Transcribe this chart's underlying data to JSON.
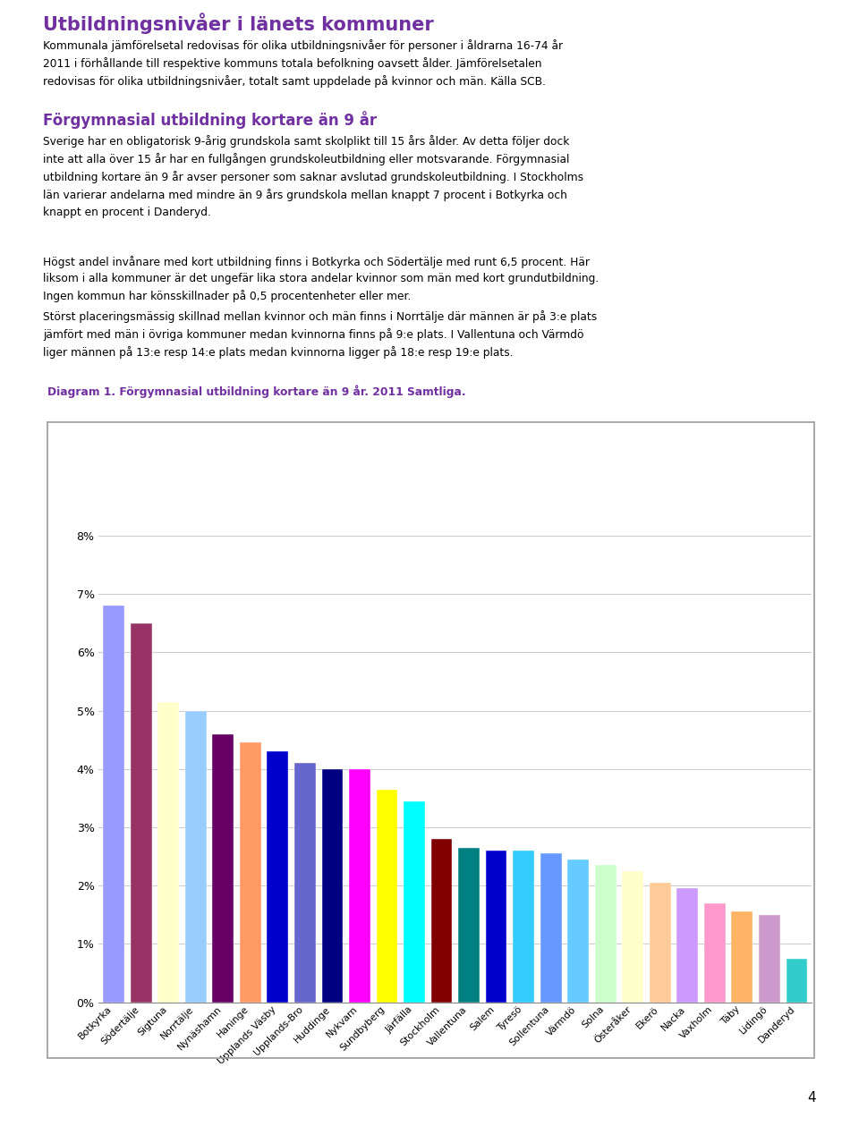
{
  "title_main": "Utbildningsnivåer i länets kommuner",
  "title_main_color": "#7030A0",
  "subtitle_h2": "Förgymnasial utbildning kortare än 9 år",
  "subtitle_h2_color": "#7030A0",
  "diagram_label": "Diagram 1. Förgymnasial utbildning kortare än 9 år. 2011 Samtliga.",
  "diagram_label_color": "#7030A0",
  "para1": "Kommunala jämförelsetal redovisas för olika utbildningsnivåer för personer i åldrarna 16-74 år\n2011 i förhållande till respektive kommuns totala befolkning oavsett ålder. Jämförelsetalen\nredovisas för olika utbildningsnivåer, totalt samt uppdelade på kvinnor och män. Källa SCB.",
  "para2": "Sverige har en obligatorisk 9-årig grundskola samt skolplikt till 15 års ålder. Av detta följer dock\ninte att alla över 15 år har en fullgången grundskoleutbildning eller motsvarande. Förgymnasial\nutbildning kortare än 9 år avser personer som saknar avslutad grundskoleutbildning. I Stockholms\nlän varierar andelarna med mindre än 9 års grundskola mellan knappt 7 procent i Botkyrka och\nknappt en procent i Danderyd.",
  "para3": "Högst andel invånare med kort utbildning finns i Botkyrka och Södertälje med runt 6,5 procent. Här\nliksom i alla kommuner är det ungefär lika stora andelar kvinnor som män med kort grundutbildning.\nIngen kommun har könsskillnader på 0,5 procentenheter eller mer.",
  "para4": "Störst placeringsmässig skillnad mellan kvinnor och män finns i Norrtälje där männen är på 3:e plats\njämfört med män i övriga kommuner medan kvinnorna finns på 9:e plats. I Vallentuna och Värmdö\nliger männen på 13:e resp 14:e plats medan kvinnorna ligger på 18:e resp 19:e plats.",
  "categories": [
    "Botkyrka",
    "Södertälje",
    "Sigtuna",
    "Norrtälje",
    "Nynäshamn",
    "Haninge",
    "Upplands Väsby",
    "Upplands-Bro",
    "Huddinge",
    "Nykvarn",
    "Sundbyberg",
    "Järfälla",
    "Stockholm",
    "Vallentuna",
    "Salem",
    "Tyresö",
    "Sollentuna",
    "Värmdö",
    "Solna",
    "Österåker",
    "Ekerö",
    "Nacka",
    "Vaxholm",
    "Täby",
    "Lidingö",
    "Danderyd"
  ],
  "values": [
    6.8,
    6.5,
    5.15,
    5.0,
    4.6,
    4.45,
    4.3,
    4.1,
    4.0,
    4.0,
    3.65,
    3.45,
    2.8,
    2.65,
    2.6,
    2.6,
    2.55,
    2.45,
    2.35,
    2.25,
    2.05,
    1.95,
    1.7,
    1.55,
    1.5,
    0.75
  ],
  "bar_colors": [
    "#9999FF",
    "#993366",
    "#FFFFCC",
    "#99CCFF",
    "#660066",
    "#FF9966",
    "#0000CC",
    "#6666CC",
    "#000080",
    "#FF00FF",
    "#FFFF00",
    "#00FFFF",
    "#800000",
    "#008080",
    "#0000CC",
    "#33CCFF",
    "#6699FF",
    "#66CCFF",
    "#CCFFCC",
    "#FFFFCC",
    "#FFCC99",
    "#CC99FF",
    "#FF99CC",
    "#FFB366",
    "#CC99CC",
    "#33CCCC"
  ],
  "ylim_max": 0.085,
  "ytick_vals": [
    0.0,
    0.01,
    0.02,
    0.03,
    0.04,
    0.05,
    0.06,
    0.07,
    0.08
  ],
  "ytick_labels": [
    "0%",
    "1%",
    "2%",
    "3%",
    "4%",
    "5%",
    "6%",
    "7%",
    "8%"
  ],
  "footer_bg": "#C080E0",
  "page_number": "4",
  "body_text_color": "#000000",
  "grid_color": "#CCCCCC",
  "chart_border_color": "#999999"
}
